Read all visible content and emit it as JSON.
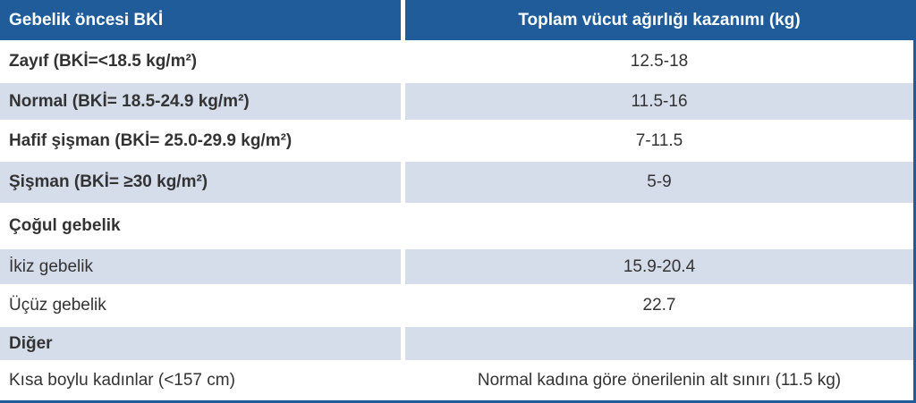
{
  "table": {
    "header": [
      "Gebelik öncesi BKİ",
      "Toplam vücut ağırlığı kazanımı (kg)"
    ],
    "rows": [
      [
        "Zayıf (BKİ=<18.5 kg/m²)",
        "12.5-18"
      ],
      [
        "Normal (BKİ= 18.5-24.9 kg/m²)",
        "11.5-16"
      ],
      [
        "Hafif şişman (BKİ= 25.0-29.9 kg/m²)",
        "7-11.5"
      ],
      [
        "Şişman (BKİ= ≥30 kg/m²)",
        "5-9"
      ],
      [
        "Çoğul gebelik"
      ],
      [
        "İkiz gebelik",
        "15.9-20.4"
      ],
      [
        "Üçüz gebelik",
        "22.7"
      ],
      [
        "Diğer"
      ],
      [
        "Kısa boylu kadınlar (<157 cm)",
        "Normal kadına göre önerilenin alt sınırı (11.5 kg)"
      ]
    ]
  }
}
